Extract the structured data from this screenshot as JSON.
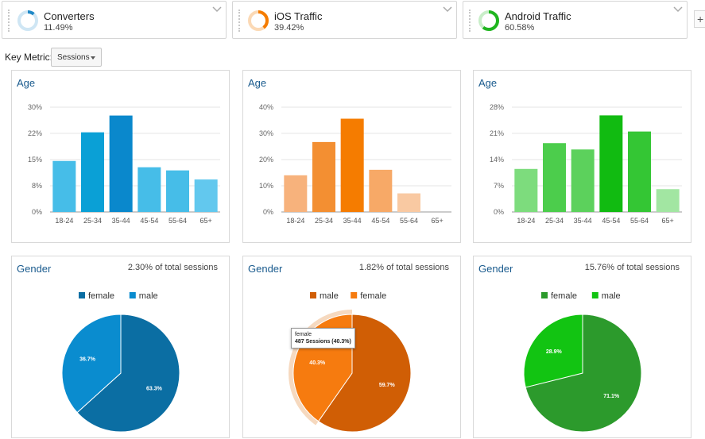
{
  "segments": [
    {
      "name": "Converters",
      "pct": "11.49%",
      "fraction": 0.1149,
      "color": "#1e88c7",
      "track": "#cfe6f4"
    },
    {
      "name": "iOS Traffic",
      "pct": "39.42%",
      "fraction": 0.3942,
      "color": "#f57c00",
      "track": "#fbd9b5"
    },
    {
      "name": "Android Traffic",
      "pct": "60.58%",
      "fraction": 0.6058,
      "color": "#1fb51f",
      "track": "#c8eec8"
    }
  ],
  "add_button": "+",
  "key_metric": {
    "label": "Key Metric:",
    "value": "Sessions"
  },
  "age_cards": [
    {
      "title": "Age",
      "chart_data": {
        "type": "bar",
        "categories": [
          "18-24",
          "25-34",
          "35-44",
          "45-54",
          "55-64",
          "65+"
        ],
        "values": [
          14.6,
          22.8,
          27.6,
          12.8,
          11.9,
          9.3
        ],
        "yticks": [
          "0%",
          "8%",
          "15%",
          "22%",
          "30%"
        ],
        "ylim": [
          0,
          30
        ],
        "colors": [
          "#46bde8",
          "#0aa0d6",
          "#0a88cc",
          "#46bde8",
          "#46bde8",
          "#62c8ee"
        ]
      }
    },
    {
      "title": "Age",
      "chart_data": {
        "type": "bar",
        "categories": [
          "18-24",
          "25-34",
          "35-44",
          "45-54",
          "55-64",
          "65+"
        ],
        "values": [
          14.0,
          26.7,
          35.6,
          16.1,
          7.1,
          0
        ],
        "yticks": [
          "0%",
          "10%",
          "20%",
          "30%",
          "40%"
        ],
        "ylim": [
          0,
          40
        ],
        "colors": [
          "#f7b27c",
          "#f38f32",
          "#f57c00",
          "#f7a967",
          "#f9c9a2",
          "#fde3cf"
        ]
      }
    },
    {
      "title": "Age",
      "chart_data": {
        "type": "bar",
        "categories": [
          "18-24",
          "25-34",
          "35-44",
          "45-54",
          "55-64",
          "65+"
        ],
        "values": [
          11.5,
          18.4,
          16.7,
          25.8,
          21.5,
          6.1
        ],
        "yticks": [
          "0%",
          "7%",
          "14%",
          "21%",
          "28%"
        ],
        "ylim": [
          0,
          28
        ],
        "colors": [
          "#7ddc7d",
          "#4ccd4c",
          "#5cd15c",
          "#11bb11",
          "#34c634",
          "#a2e6a2"
        ]
      }
    }
  ],
  "gender_cards": [
    {
      "title": "Gender",
      "note": "2.30% of total sessions",
      "legend": [
        {
          "label": "female",
          "color": "#0b6ea3"
        },
        {
          "label": "male",
          "color": "#0a8ccf"
        }
      ],
      "chart_data": {
        "type": "pie",
        "slices": [
          {
            "label": "female",
            "value": 63.3,
            "text": "63.3%",
            "color": "#0b6ea3"
          },
          {
            "label": "male",
            "value": 36.7,
            "text": "36.7%",
            "color": "#0a8ccf"
          }
        ]
      }
    },
    {
      "title": "Gender",
      "note": "1.82% of total sessions",
      "legend": [
        {
          "label": "male",
          "color": "#d05e05"
        },
        {
          "label": "female",
          "color": "#f67b0f"
        }
      ],
      "chart_data": {
        "type": "pie",
        "slices": [
          {
            "label": "male",
            "value": 59.7,
            "text": "59.7%",
            "color": "#d05e05"
          },
          {
            "label": "female",
            "value": 40.3,
            "text": "40.3%",
            "color": "#f67b0f"
          }
        ]
      },
      "tooltip": {
        "line1": "female",
        "line2": "487 Sessions (40.3%)"
      }
    },
    {
      "title": "Gender",
      "note": "15.76% of total sessions",
      "legend": [
        {
          "label": "female",
          "color": "#2c9a2c"
        },
        {
          "label": "male",
          "color": "#12c412"
        }
      ],
      "chart_data": {
        "type": "pie",
        "slices": [
          {
            "label": "female",
            "value": 71.1,
            "text": "71.1%",
            "color": "#2c9a2c"
          },
          {
            "label": "male",
            "value": 28.9,
            "text": "28.9%",
            "color": "#12c412"
          }
        ]
      }
    }
  ]
}
